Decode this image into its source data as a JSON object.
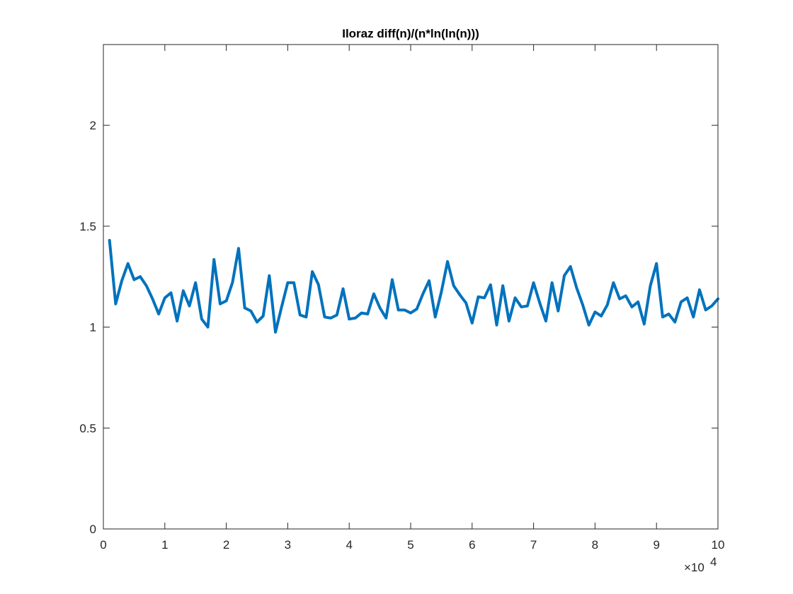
{
  "chart_data": {
    "type": "line",
    "title": "Iloraz diff(n)/(n*ln(ln(n)))",
    "xlabel": "",
    "ylabel": "",
    "xlim": [
      0,
      100000
    ],
    "ylim": [
      0,
      2.4
    ],
    "x_ticks": [
      0,
      10000,
      20000,
      30000,
      40000,
      50000,
      60000,
      70000,
      80000,
      90000,
      100000
    ],
    "x_tick_labels": [
      "0",
      "1",
      "2",
      "3",
      "4",
      "5",
      "6",
      "7",
      "8",
      "9",
      "10"
    ],
    "x_exponent_label": {
      "base": "×10",
      "power": "4"
    },
    "y_ticks": [
      0,
      0.5,
      1,
      1.5,
      2
    ],
    "y_tick_labels": [
      "0",
      "0.5",
      "1",
      "1.5",
      "2"
    ],
    "grid": false,
    "series": [
      {
        "color": "#0072BD",
        "x": [
          1000,
          2000,
          3000,
          4000,
          5000,
          6000,
          7000,
          8000,
          9000,
          10000,
          11000,
          12000,
          13000,
          14000,
          15000,
          16000,
          17000,
          18000,
          19000,
          20000,
          21000,
          22000,
          23000,
          24000,
          25000,
          26000,
          27000,
          28000,
          29000,
          30000,
          31000,
          32000,
          33000,
          34000,
          35000,
          36000,
          37000,
          38000,
          39000,
          40000,
          41000,
          42000,
          43000,
          44000,
          45000,
          46000,
          47000,
          48000,
          49000,
          50000,
          51000,
          52000,
          53000,
          54000,
          55000,
          56000,
          57000,
          58000,
          59000,
          60000,
          61000,
          62000,
          63000,
          64000,
          65000,
          66000,
          67000,
          68000,
          69000,
          70000,
          71000,
          72000,
          73000,
          74000,
          75000,
          76000,
          77000,
          78000,
          79000,
          80000,
          81000,
          82000,
          83000,
          84000,
          85000,
          86000,
          87000,
          88000,
          89000,
          90000,
          91000,
          92000,
          93000,
          94000,
          95000,
          96000,
          97000,
          98000,
          99000,
          100000
        ],
        "values": [
          1.43,
          1.115,
          1.23,
          1.315,
          1.235,
          1.25,
          1.205,
          1.14,
          1.065,
          1.145,
          1.17,
          1.03,
          1.18,
          1.105,
          1.22,
          1.04,
          1.0,
          1.335,
          1.115,
          1.13,
          1.22,
          1.39,
          1.095,
          1.08,
          1.025,
          1.055,
          1.255,
          0.975,
          1.1,
          1.22,
          1.22,
          1.06,
          1.05,
          1.275,
          1.21,
          1.05,
          1.045,
          1.06,
          1.19,
          1.04,
          1.045,
          1.07,
          1.065,
          1.165,
          1.095,
          1.045,
          1.235,
          1.085,
          1.085,
          1.07,
          1.09,
          1.165,
          1.23,
          1.05,
          1.175,
          1.325,
          1.205,
          1.16,
          1.12,
          1.02,
          1.15,
          1.145,
          1.21,
          1.01,
          1.205,
          1.03,
          1.145,
          1.1,
          1.105,
          1.22,
          1.12,
          1.03,
          1.22,
          1.08,
          1.255,
          1.3,
          1.195,
          1.11,
          1.01,
          1.075,
          1.055,
          1.11,
          1.22,
          1.14,
          1.155,
          1.1,
          1.125,
          1.015,
          1.205,
          1.315,
          1.05,
          1.065,
          1.025,
          1.125,
          1.145,
          1.05,
          1.185,
          1.085,
          1.105,
          1.14
        ]
      }
    ]
  }
}
